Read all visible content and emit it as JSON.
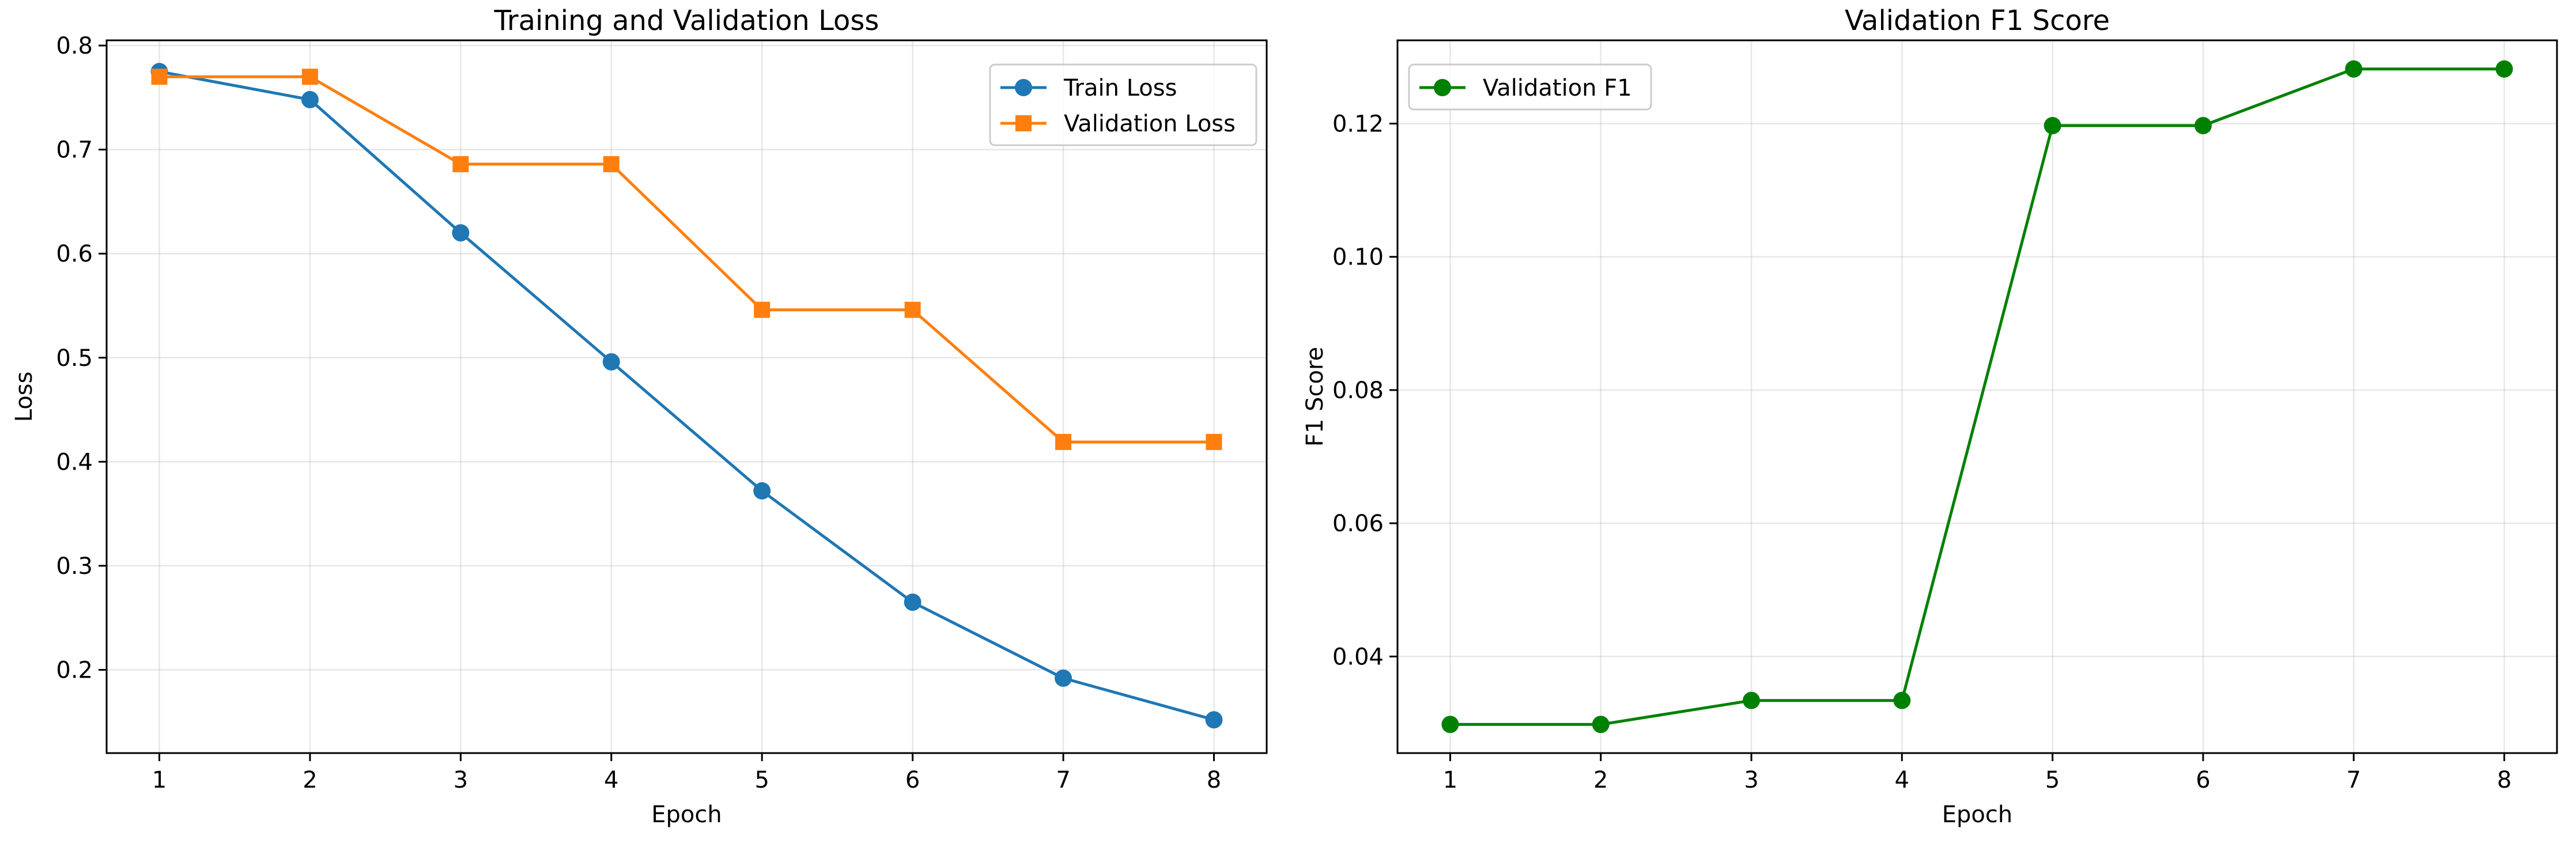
{
  "chart_data": [
    {
      "type": "line",
      "title": "Training and Validation Loss",
      "xlabel": "Epoch",
      "ylabel": "Loss",
      "x": [
        1,
        2,
        3,
        4,
        5,
        6,
        7,
        8
      ],
      "xlim": [
        0.65,
        8.35
      ],
      "ylim": [
        0.12,
        0.805
      ],
      "xticks": [
        1,
        2,
        3,
        4,
        5,
        6,
        7,
        8
      ],
      "yticks": [
        0.2,
        0.3,
        0.4,
        0.5,
        0.6,
        0.7,
        0.8
      ],
      "ytick_labels": [
        "0.2",
        "0.3",
        "0.4",
        "0.5",
        "0.6",
        "0.7",
        "0.8"
      ],
      "grid": true,
      "legend": "upper right",
      "series": [
        {
          "name": "Train Loss",
          "color": "#1f77b4",
          "marker": "circle",
          "values": [
            0.775,
            0.748,
            0.62,
            0.496,
            0.372,
            0.265,
            0.192,
            0.152
          ]
        },
        {
          "name": "Validation Loss",
          "color": "#ff7f0e",
          "marker": "square",
          "values": [
            0.77,
            0.77,
            0.686,
            0.686,
            0.546,
            0.546,
            0.419,
            0.419
          ]
        }
      ]
    },
    {
      "type": "line",
      "title": "Validation F1 Score",
      "xlabel": "Epoch",
      "ylabel": "F1 Score",
      "x": [
        1,
        2,
        3,
        4,
        5,
        6,
        7,
        8
      ],
      "xlim": [
        0.65,
        8.35
      ],
      "ylim": [
        0.0255,
        0.1325
      ],
      "xticks": [
        1,
        2,
        3,
        4,
        5,
        6,
        7,
        8
      ],
      "yticks": [
        0.04,
        0.06,
        0.08,
        0.1,
        0.12
      ],
      "ytick_labels": [
        "0.04",
        "0.06",
        "0.08",
        "0.10",
        "0.12"
      ],
      "grid": true,
      "legend": "upper left",
      "series": [
        {
          "name": "Validation F1",
          "color": "#008000",
          "marker": "circle",
          "values": [
            0.0298,
            0.0298,
            0.0334,
            0.0334,
            0.1197,
            0.1197,
            0.1282,
            0.1282
          ]
        }
      ]
    }
  ]
}
